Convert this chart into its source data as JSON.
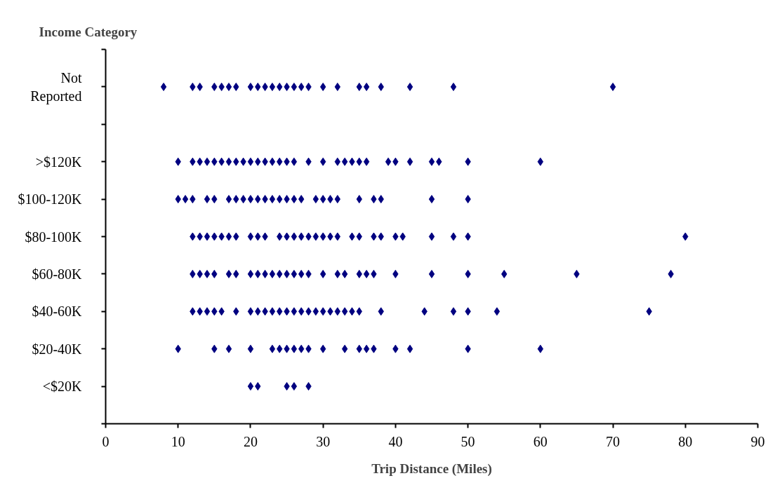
{
  "chart_data": {
    "type": "scatter",
    "orientation": "horizontal",
    "ylabel": "Income Category",
    "xlabel": "Trip Distance (Miles)",
    "xlim": [
      0,
      90
    ],
    "xticks": [
      0,
      10,
      20,
      30,
      40,
      50,
      60,
      70,
      80,
      90
    ],
    "categories": [
      "Not Reported",
      null,
      ">$120K",
      "$100-120K",
      "$80-100K",
      "$60-80K",
      "$40-60K",
      "$20-40K",
      "<$20K"
    ],
    "marker": "diamond",
    "grid": false,
    "series": [
      {
        "color": "#000080",
        "values": [
          8,
          12,
          13,
          15,
          16,
          17,
          18,
          20,
          21,
          22,
          23,
          24,
          25,
          26,
          27,
          28,
          30,
          32,
          35,
          36,
          38,
          42,
          48,
          70,
          10,
          12,
          13,
          14,
          15,
          16,
          17,
          18,
          19,
          20,
          21,
          22,
          23,
          24,
          25,
          26,
          28,
          30,
          32,
          33,
          34,
          35,
          36,
          39,
          40,
          42,
          45,
          46,
          50,
          60,
          10,
          11,
          12,
          14,
          15,
          17,
          18,
          19,
          20,
          21,
          22,
          23,
          24,
          25,
          26,
          27,
          29,
          30,
          31,
          32,
          35,
          37,
          38,
          45,
          50,
          12,
          13,
          14,
          15,
          16,
          17,
          18,
          20,
          21,
          22,
          24,
          25,
          26,
          27,
          28,
          29,
          30,
          31,
          32,
          34,
          35,
          37,
          38,
          40,
          41,
          45,
          48,
          50,
          80,
          12,
          13,
          14,
          15,
          17,
          18,
          20,
          21,
          22,
          23,
          24,
          25,
          26,
          27,
          28,
          30,
          32,
          33,
          35,
          36,
          37,
          40,
          45,
          50,
          55,
          65,
          78,
          12,
          13,
          14,
          15,
          16,
          18,
          20,
          21,
          22,
          23,
          24,
          25,
          26,
          27,
          28,
          29,
          30,
          31,
          32,
          33,
          34,
          35,
          38,
          44,
          48,
          50,
          54,
          75,
          10,
          15,
          17,
          20,
          23,
          24,
          25,
          26,
          27,
          28,
          30,
          33,
          35,
          36,
          37,
          40,
          42,
          50,
          60,
          20,
          21,
          25,
          26,
          28
        ],
        "x": [
          "Not Reported",
          "Not Reported",
          "Not Reported",
          "Not Reported",
          "Not Reported",
          "Not Reported",
          "Not Reported",
          "Not Reported",
          "Not Reported",
          "Not Reported",
          "Not Reported",
          "Not Reported",
          "Not Reported",
          "Not Reported",
          "Not Reported",
          "Not Reported",
          "Not Reported",
          "Not Reported",
          "Not Reported",
          "Not Reported",
          "Not Reported",
          "Not Reported",
          "Not Reported",
          "Not Reported",
          ">$120K",
          ">$120K",
          ">$120K",
          ">$120K",
          ">$120K",
          ">$120K",
          ">$120K",
          ">$120K",
          ">$120K",
          ">$120K",
          ">$120K",
          ">$120K",
          ">$120K",
          ">$120K",
          ">$120K",
          ">$120K",
          ">$120K",
          ">$120K",
          ">$120K",
          ">$120K",
          ">$120K",
          ">$120K",
          ">$120K",
          ">$120K",
          ">$120K",
          ">$120K",
          ">$120K",
          ">$120K",
          ">$120K",
          ">$120K",
          "$100-120K",
          "$100-120K",
          "$100-120K",
          "$100-120K",
          "$100-120K",
          "$100-120K",
          "$100-120K",
          "$100-120K",
          "$100-120K",
          "$100-120K",
          "$100-120K",
          "$100-120K",
          "$100-120K",
          "$100-120K",
          "$100-120K",
          "$100-120K",
          "$100-120K",
          "$100-120K",
          "$100-120K",
          "$100-120K",
          "$100-120K",
          "$100-120K",
          "$100-120K",
          "$100-120K",
          "$100-120K",
          "$80-100K",
          "$80-100K",
          "$80-100K",
          "$80-100K",
          "$80-100K",
          "$80-100K",
          "$80-100K",
          "$80-100K",
          "$80-100K",
          "$80-100K",
          "$80-100K",
          "$80-100K",
          "$80-100K",
          "$80-100K",
          "$80-100K",
          "$80-100K",
          "$80-100K",
          "$80-100K",
          "$80-100K",
          "$80-100K",
          "$80-100K",
          "$80-100K",
          "$80-100K",
          "$80-100K",
          "$80-100K",
          "$80-100K",
          "$80-100K",
          "$80-100K",
          "$80-100K",
          "$60-80K",
          "$60-80K",
          "$60-80K",
          "$60-80K",
          "$60-80K",
          "$60-80K",
          "$60-80K",
          "$60-80K",
          "$60-80K",
          "$60-80K",
          "$60-80K",
          "$60-80K",
          "$60-80K",
          "$60-80K",
          "$60-80K",
          "$60-80K",
          "$60-80K",
          "$60-80K",
          "$60-80K",
          "$60-80K",
          "$60-80K",
          "$60-80K",
          "$60-80K",
          "$60-80K",
          "$60-80K",
          "$60-80K",
          "$60-80K",
          "$40-60K",
          "$40-60K",
          "$40-60K",
          "$40-60K",
          "$40-60K",
          "$40-60K",
          "$40-60K",
          "$40-60K",
          "$40-60K",
          "$40-60K",
          "$40-60K",
          "$40-60K",
          "$40-60K",
          "$40-60K",
          "$40-60K",
          "$40-60K",
          "$40-60K",
          "$40-60K",
          "$40-60K",
          "$40-60K",
          "$40-60K",
          "$40-60K",
          "$40-60K",
          "$40-60K",
          "$40-60K",
          "$40-60K",
          "$40-60K",
          "$40-60K",
          "$20-40K",
          "$20-40K",
          "$20-40K",
          "$20-40K",
          "$20-40K",
          "$20-40K",
          "$20-40K",
          "$20-40K",
          "$20-40K",
          "$20-40K",
          "$20-40K",
          "$20-40K",
          "$20-40K",
          "$20-40K",
          "$20-40K",
          "$20-40K",
          "$20-40K",
          "$20-40K",
          "$20-40K",
          "<$20K",
          "<$20K",
          "<$20K",
          "<$20K",
          "<$20K"
        ]
      }
    ]
  }
}
